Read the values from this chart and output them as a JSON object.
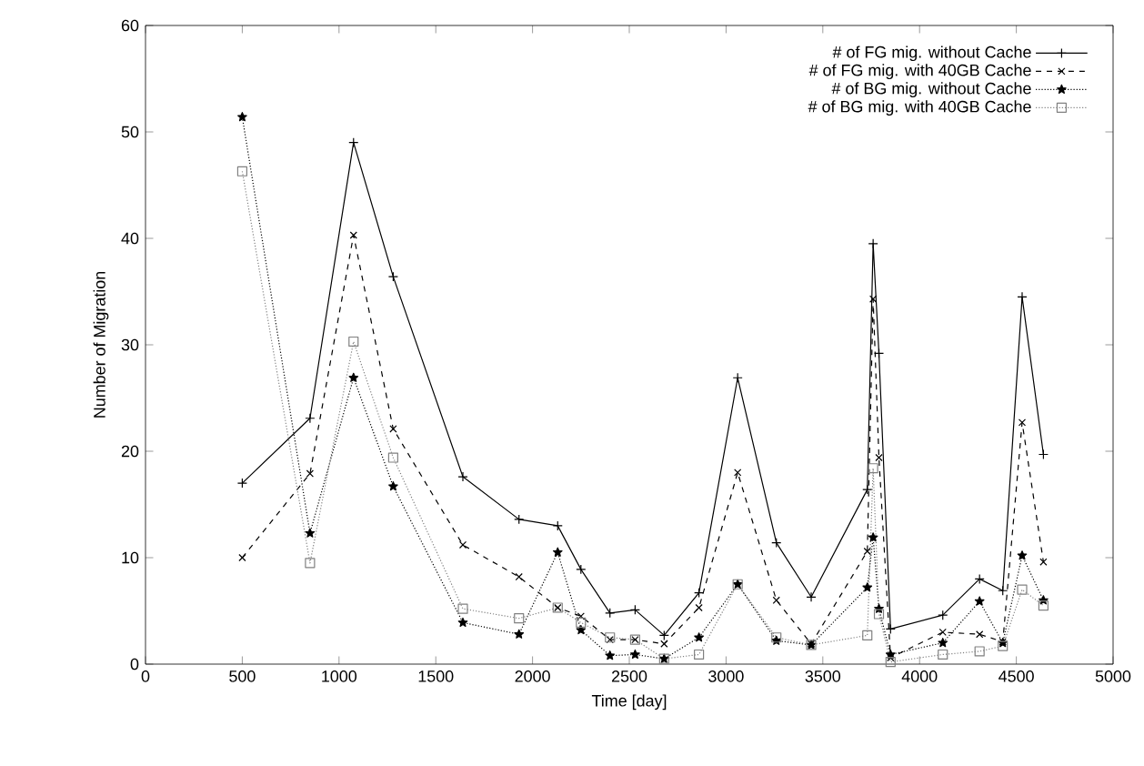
{
  "chart_data": {
    "type": "line",
    "xlabel": "Time [day]",
    "ylabel": "Number of Migration",
    "x": [
      500,
      850,
      1075,
      1280,
      1640,
      1930,
      2130,
      2250,
      2400,
      2530,
      2680,
      2860,
      3060,
      3260,
      3440,
      3730,
      3760,
      3790,
      3850,
      4120,
      4310,
      4430,
      4530,
      4640
    ],
    "series": [
      {
        "name": "# of FG mig. without Cache",
        "color": "#000000",
        "marker": "plus",
        "line_style": "solid",
        "values": [
          17.0,
          23.1,
          49.0,
          36.4,
          17.6,
          13.6,
          13.0,
          8.9,
          4.8,
          5.1,
          2.7,
          6.7,
          26.9,
          11.4,
          6.3,
          16.4,
          39.5,
          29.2,
          3.3,
          4.6,
          8.0,
          6.9,
          34.5,
          19.7
        ]
      },
      {
        "name": "# of FG mig. with 40GB Cache",
        "color": "#000000",
        "marker": "cross",
        "line_style": "dashed",
        "values": [
          10.0,
          17.9,
          40.3,
          22.1,
          11.2,
          8.2,
          5.3,
          4.5,
          2.3,
          2.3,
          1.9,
          5.3,
          18.0,
          6.0,
          1.9,
          10.6,
          34.3,
          19.4,
          0.6,
          3.0,
          2.8,
          2.1,
          22.7,
          9.6
        ]
      },
      {
        "name": "# of BG mig. without Cache",
        "color": "#000000",
        "marker": "star",
        "line_style": "dotted",
        "values": [
          51.4,
          12.3,
          26.9,
          16.7,
          3.9,
          2.8,
          10.5,
          3.2,
          0.8,
          0.9,
          0.5,
          2.5,
          7.5,
          2.2,
          1.8,
          7.2,
          11.9,
          5.2,
          0.9,
          2.0,
          5.9,
          2.0,
          10.2,
          6.0
        ]
      },
      {
        "name": "# of BG mig. with 40GB Cache",
        "color": "#808080",
        "marker": "square",
        "line_style": "dotted",
        "values": [
          46.3,
          9.5,
          30.3,
          19.4,
          5.2,
          4.3,
          5.3,
          3.9,
          2.5,
          2.3,
          0.5,
          0.9,
          7.5,
          2.5,
          1.8,
          2.7,
          18.4,
          4.7,
          0.2,
          0.9,
          1.2,
          1.7,
          7.0,
          5.5
        ]
      }
    ],
    "xlim": [
      0,
      5000
    ],
    "xticks": [
      0,
      500,
      1000,
      1500,
      2000,
      2500,
      3000,
      3500,
      4000,
      4500,
      5000
    ],
    "ylim": [
      0,
      60
    ],
    "yticks": [
      0,
      10,
      20,
      30,
      40,
      50,
      60
    ],
    "grid": false,
    "legend": "top right"
  }
}
